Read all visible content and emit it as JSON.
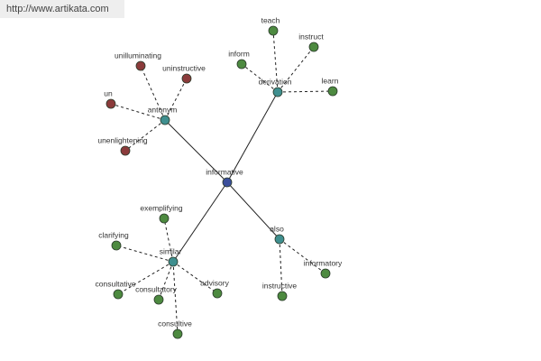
{
  "header": {
    "url": "http://www.artikata.com"
  },
  "center": {
    "label": "informative"
  },
  "groups": [
    {
      "label": "antonym",
      "children": [
        "unilluminating",
        "uninstructive",
        "un",
        "unenlightening"
      ]
    },
    {
      "label": "derivation",
      "children": [
        "teach",
        "instruct",
        "inform",
        "learn"
      ]
    },
    {
      "label": "similar",
      "children": [
        "exemplifying",
        "clarifying",
        "consultative",
        "consultatory",
        "advisory",
        "consultive"
      ]
    },
    {
      "label": "also",
      "children": [
        "instructive",
        "informatory"
      ]
    }
  ]
}
